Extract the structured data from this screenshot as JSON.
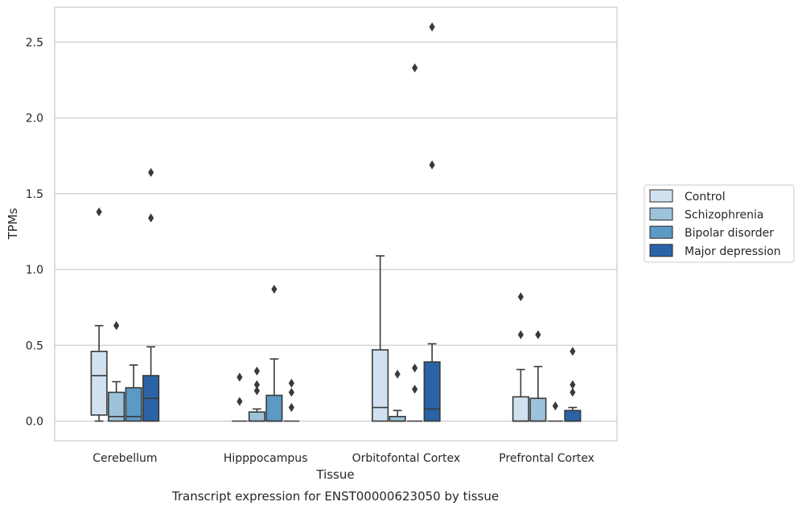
{
  "chart_data": {
    "type": "box",
    "title": "",
    "caption": "Transcript expression for ENST00000623050 by tissue",
    "xlabel": "Tissue",
    "ylabel": "TPMs",
    "ylim": [
      -0.13,
      2.73
    ],
    "yticks": [
      0.0,
      0.5,
      1.0,
      1.5,
      2.0,
      2.5
    ],
    "ytick_labels": [
      "0.0",
      "0.5",
      "1.0",
      "1.5",
      "2.0",
      "2.5"
    ],
    "grid": "horizontal",
    "legend_position": "right",
    "categories": [
      "Cerebellum",
      "Hipppocampus",
      "Orbitofontal Cortex",
      "Prefrontal Cortex"
    ],
    "series": [
      {
        "name": "Control",
        "color": "#d1e1f0",
        "boxes": [
          {
            "q1": 0.04,
            "median": 0.3,
            "q3": 0.46,
            "whislo": 0.0,
            "whishi": 0.63,
            "fliers": [
              1.38
            ]
          },
          {
            "q1": 0.0,
            "median": 0.0,
            "q3": 0.0,
            "whislo": 0.0,
            "whishi": 0.0,
            "fliers": [
              0.13,
              0.29
            ]
          },
          {
            "q1": 0.0,
            "median": 0.09,
            "q3": 0.47,
            "whislo": 0.0,
            "whishi": 1.09,
            "fliers": []
          },
          {
            "q1": 0.0,
            "median": 0.0,
            "q3": 0.16,
            "whislo": 0.0,
            "whishi": 0.34,
            "fliers": [
              0.57,
              0.82
            ]
          }
        ]
      },
      {
        "name": "Schizophrenia",
        "color": "#9cc3da",
        "boxes": [
          {
            "q1": 0.0,
            "median": 0.03,
            "q3": 0.19,
            "whislo": 0.0,
            "whishi": 0.26,
            "fliers": [
              0.63
            ]
          },
          {
            "q1": 0.0,
            "median": 0.0,
            "q3": 0.06,
            "whislo": 0.0,
            "whishi": 0.08,
            "fliers": [
              0.2,
              0.24,
              0.33
            ]
          },
          {
            "q1": 0.0,
            "median": 0.0,
            "q3": 0.03,
            "whislo": 0.0,
            "whishi": 0.07,
            "fliers": [
              0.31
            ]
          },
          {
            "q1": 0.0,
            "median": 0.0,
            "q3": 0.15,
            "whislo": 0.0,
            "whishi": 0.36,
            "fliers": [
              0.57
            ]
          }
        ]
      },
      {
        "name": "Bipolar disorder",
        "color": "#5a9ac4",
        "boxes": [
          {
            "q1": 0.0,
            "median": 0.03,
            "q3": 0.22,
            "whislo": 0.0,
            "whishi": 0.37,
            "fliers": []
          },
          {
            "q1": 0.0,
            "median": 0.0,
            "q3": 0.17,
            "whislo": 0.0,
            "whishi": 0.41,
            "fliers": [
              0.87
            ]
          },
          {
            "q1": 0.0,
            "median": 0.0,
            "q3": 0.0,
            "whislo": 0.0,
            "whishi": 0.0,
            "fliers": [
              0.21,
              0.35,
              2.33
            ]
          },
          {
            "q1": 0.0,
            "median": 0.0,
            "q3": 0.0,
            "whislo": 0.0,
            "whishi": 0.0,
            "fliers": [
              0.1
            ]
          }
        ]
      },
      {
        "name": "Major depression",
        "color": "#2a64a6",
        "boxes": [
          {
            "q1": 0.0,
            "median": 0.15,
            "q3": 0.3,
            "whislo": 0.0,
            "whishi": 0.49,
            "fliers": [
              1.34,
              1.64
            ]
          },
          {
            "q1": 0.0,
            "median": 0.0,
            "q3": 0.0,
            "whislo": 0.0,
            "whishi": 0.0,
            "fliers": [
              0.09,
              0.19,
              0.25
            ]
          },
          {
            "q1": 0.0,
            "median": 0.08,
            "q3": 0.39,
            "whislo": 0.0,
            "whishi": 0.51,
            "fliers": [
              1.69,
              2.6
            ]
          },
          {
            "q1": 0.0,
            "median": 0.0,
            "q3": 0.07,
            "whislo": 0.0,
            "whishi": 0.09,
            "fliers": [
              0.19,
              0.24,
              0.46
            ]
          }
        ]
      }
    ]
  }
}
